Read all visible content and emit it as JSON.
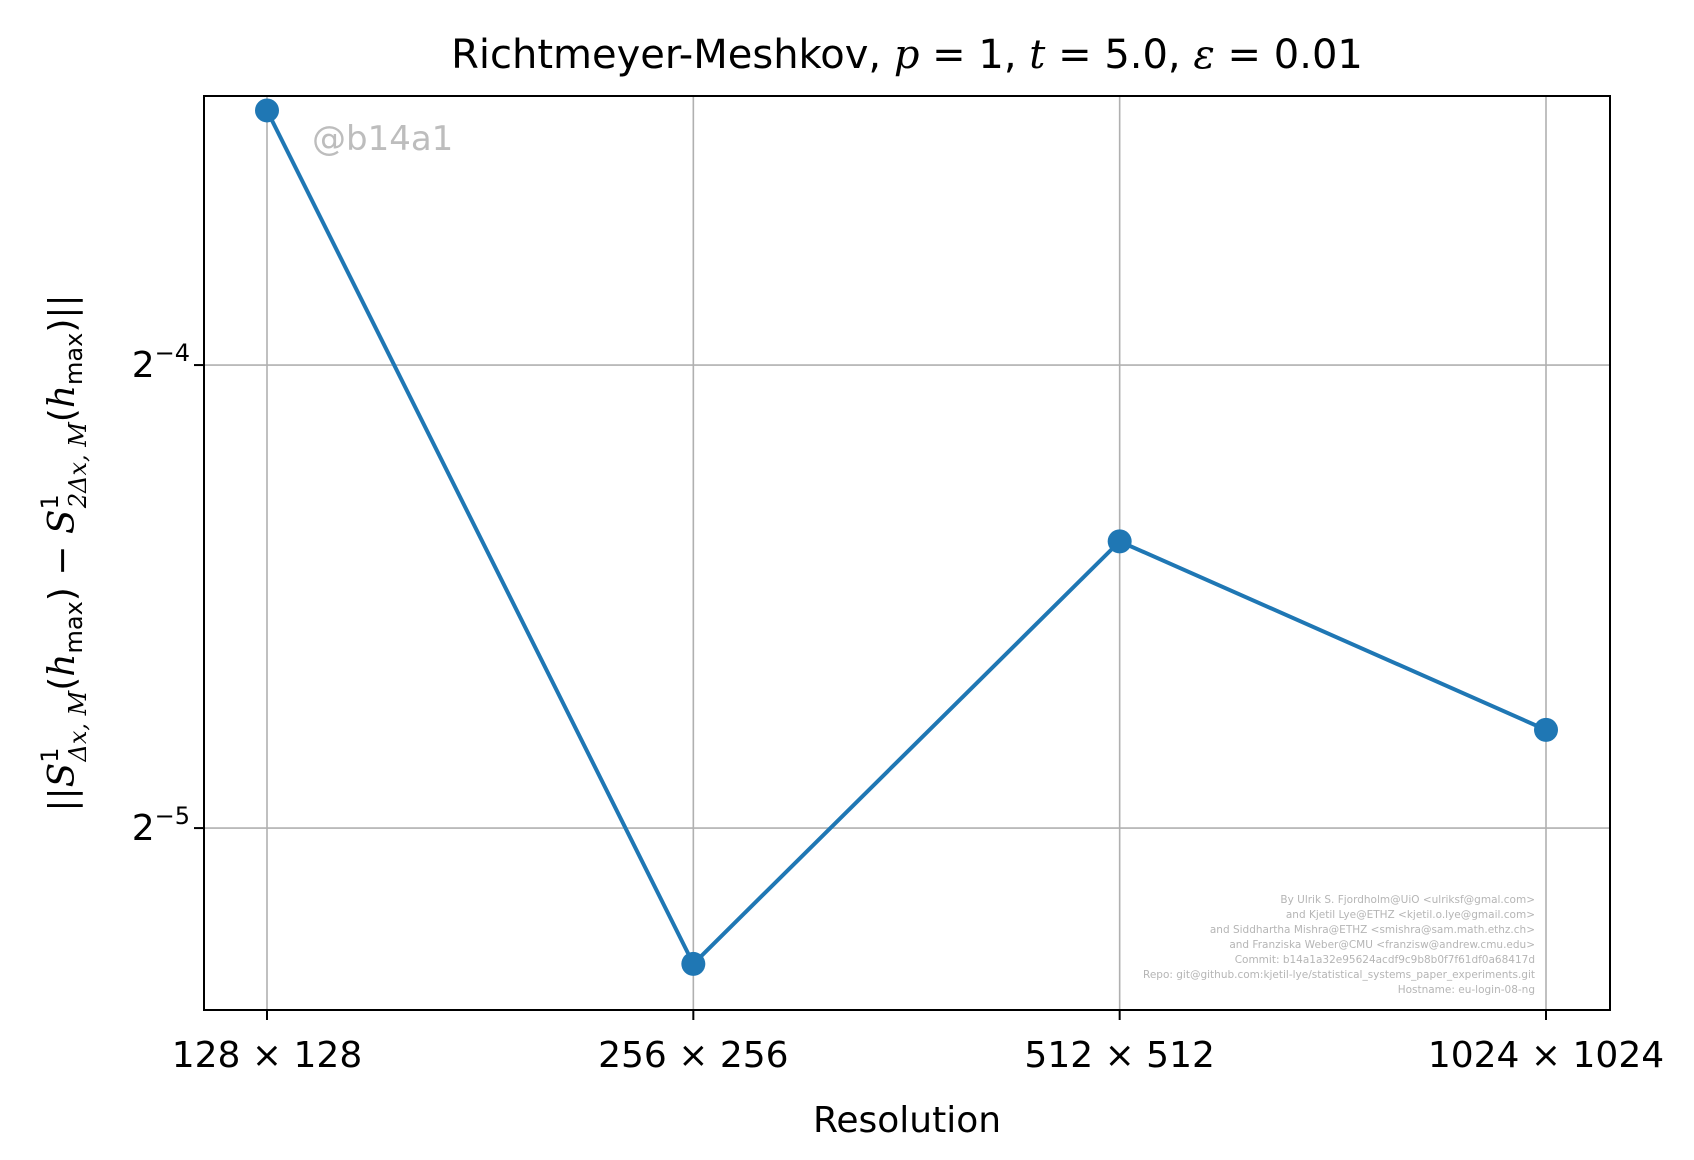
{
  "chart_data": {
    "type": "line",
    "title_parts": {
      "prefix": "Richtmeyer-Meshkov, ",
      "p": "p",
      "p_eq": " = 1, ",
      "t": "t",
      "t_eq": " = 5.0, ",
      "eps": "ε",
      "eps_eq": " = 0.01"
    },
    "xlabel": "Resolution",
    "ylabel_parts": {
      "a1": "||",
      "S": "S",
      "sup1": "1",
      "sub1": "Δx, M",
      "paren1": "(",
      "h1": "h",
      "max1": "max",
      "mid": ") − ",
      "S2": "S",
      "sup2": "1",
      "sub2": "2Δx, M",
      "paren2": "(",
      "h2": "h",
      "max2": "max",
      "end": ")||"
    },
    "categories": [
      "128 × 128",
      "256 × 256",
      "512 × 512",
      "1024 × 1024"
    ],
    "series": [
      {
        "values": [
          0.0915,
          0.0255,
          0.048,
          0.0362
        ],
        "color": "#1f77b4"
      }
    ],
    "yscale": "log2",
    "ylim": [
      0.0238,
      0.0935
    ],
    "yticks": [
      {
        "value": 0.0625,
        "base": "2",
        "exp": "−4"
      },
      {
        "value": 0.03125,
        "base": "2",
        "exp": "−5"
      }
    ],
    "grid": true
  },
  "watermark": "@b14a1",
  "credits": [
    "By Ulrik S. Fjordholm@UiO <ulriksf@gmal.com>",
    "and Kjetil Lye@ETHZ <kjetil.o.lye@gmail.com>",
    "and Siddhartha Mishra@ETHZ <smishra@sam.math.ethz.ch>",
    "and Franziska Weber@CMU <franzisw@andrew.cmu.edu>",
    "Commit: b14a1a32e95624acdf9c9b8b0f7f61df0a68417d",
    "Repo: git@github.com:kjetil-lye/statistical_systems_paper_experiments.git",
    "Hostname: eu-login-08-ng"
  ]
}
